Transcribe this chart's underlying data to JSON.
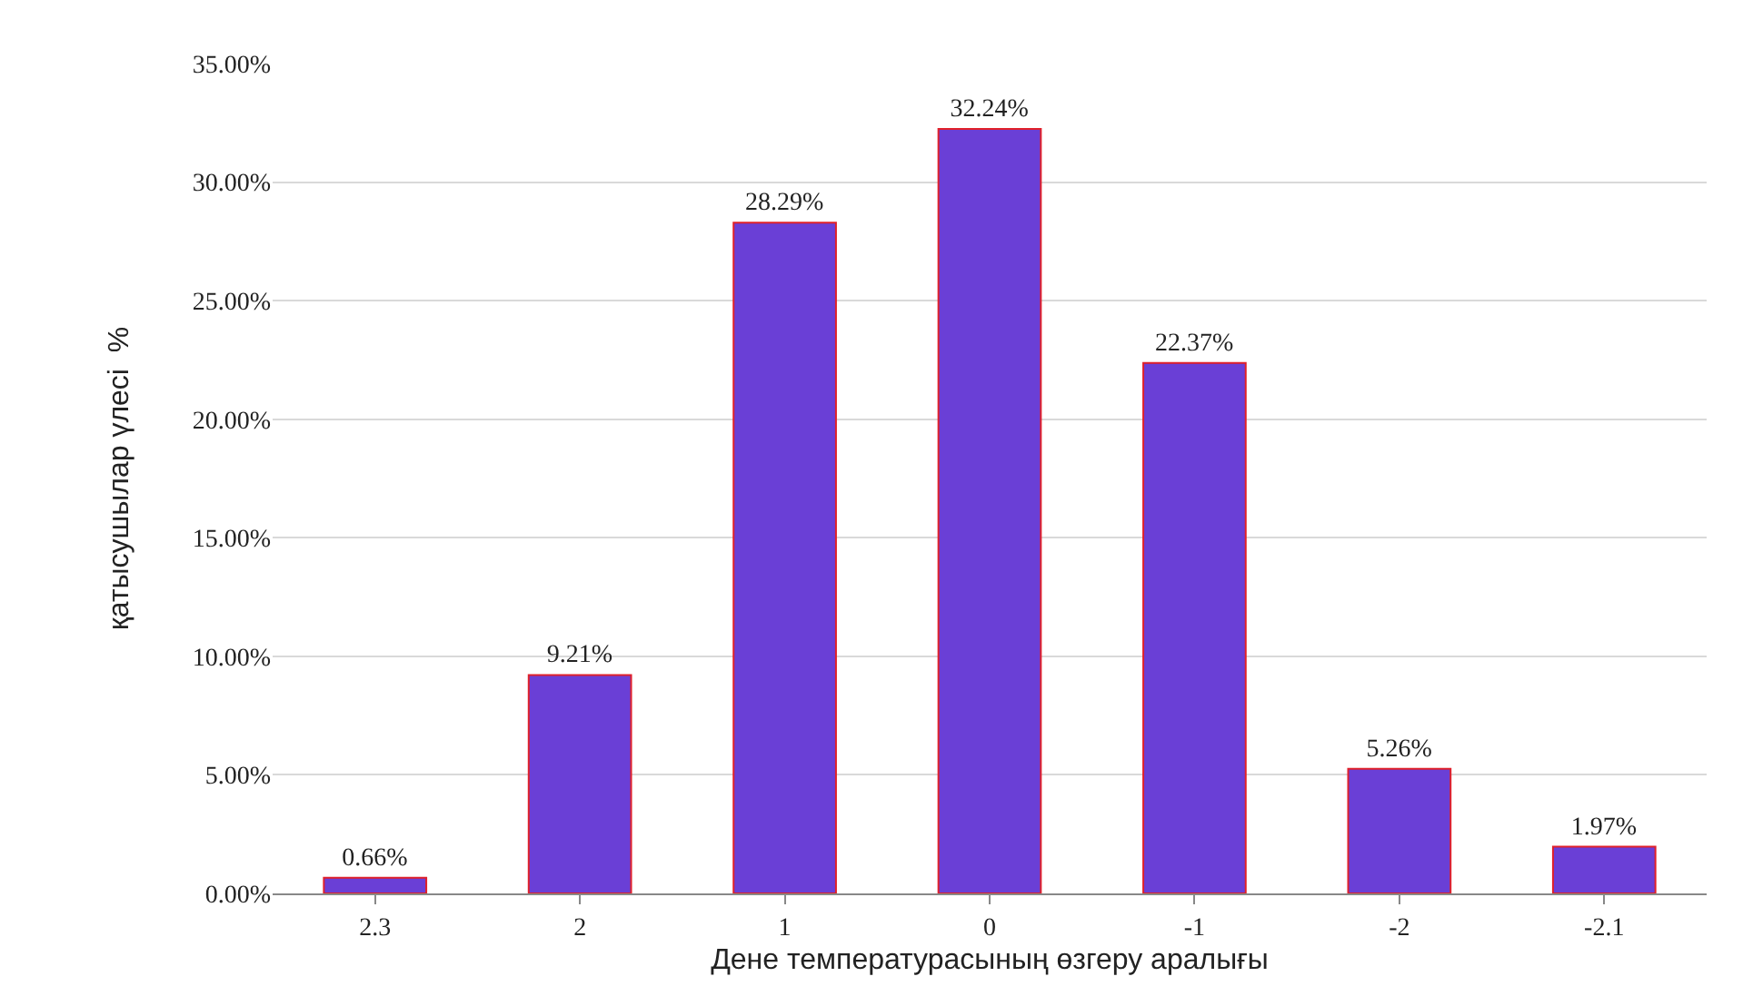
{
  "chart_data": {
    "type": "bar",
    "xlabel": "Дене температурасының өзгеру аралығы",
    "ylabel": "қатысушылар үлесі  %",
    "categories": [
      "2.3",
      "2",
      "1",
      "0",
      "-1",
      "-2",
      "-2.1"
    ],
    "values": [
      0.66,
      9.21,
      28.29,
      32.24,
      22.37,
      5.26,
      1.97
    ],
    "value_labels": [
      "0.66%",
      "9.21%",
      "28.29%",
      "32.24%",
      "22.37%",
      "5.26%",
      "1.97%"
    ],
    "color": "#6a3fd6",
    "ylim": [
      0,
      35
    ],
    "yticks": [
      {
        "value": 0,
        "label": "0.00%"
      },
      {
        "value": 5,
        "label": "5.00%"
      },
      {
        "value": 10,
        "label": "10.00%"
      },
      {
        "value": 15,
        "label": "15.00%"
      },
      {
        "value": 20,
        "label": "20.00%"
      },
      {
        "value": 25,
        "label": "25.00%"
      },
      {
        "value": 30,
        "label": "30.00%"
      },
      {
        "value": 35,
        "label": "35.00%"
      }
    ],
    "grid": "y"
  }
}
